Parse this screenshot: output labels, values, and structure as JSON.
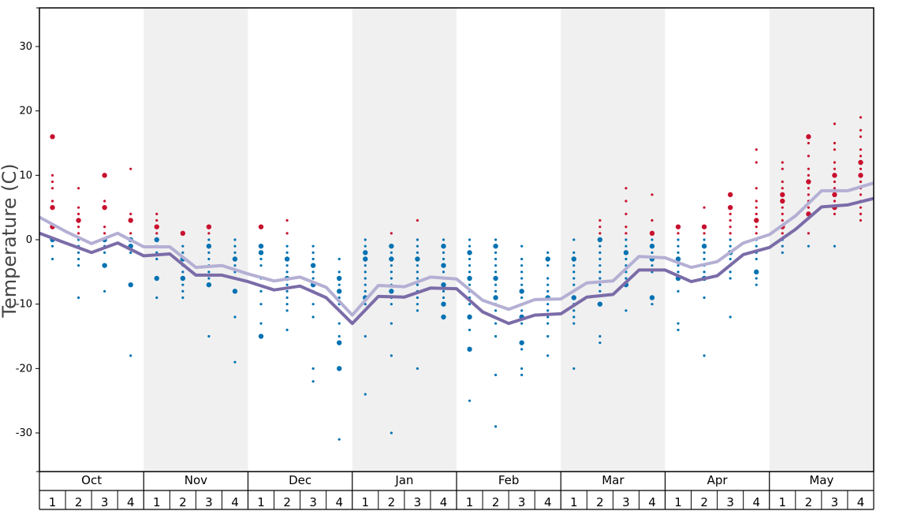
{
  "chart_data": {
    "type": "scatter",
    "ylabel": "Temperature (C)",
    "ylim": [
      -36,
      36
    ],
    "yticks": [
      30,
      20,
      10,
      0,
      -10,
      -20,
      -30
    ],
    "grid": false,
    "months": [
      "Oct",
      "Nov",
      "Dec",
      "Jan",
      "Feb",
      "Mar",
      "Apr",
      "May"
    ],
    "weeks": [
      "1",
      "2",
      "3",
      "4"
    ],
    "shaded_months": [
      "Nov",
      "Jan",
      "Mar",
      "May"
    ],
    "colors": {
      "warm_points": "#c8102e",
      "cold_points": "#0072b2",
      "shade": "#f0f0f0",
      "line_dark": "#7b6ca8",
      "line_light": "#b4b0d4",
      "axis": "#000000"
    },
    "series": [
      {
        "values": [
          1.0,
          -0.5,
          -2.0,
          -0.5,
          -2.5,
          -2.2,
          -5.5,
          -5.5,
          -6.5,
          -7.8,
          -7.2,
          -9.0,
          -13.0,
          -8.8,
          -8.9,
          -7.5,
          -7.6,
          -11.2,
          -13.0,
          -11.7,
          -11.5,
          -8.9,
          -8.5,
          -4.7,
          -4.7,
          -6.5,
          -5.6,
          -2.3,
          -1.2,
          1.6,
          5.1,
          5.4,
          6.4
        ]
      },
      {
        "values": [
          3.5,
          1.3,
          -0.6,
          1.0,
          -1.1,
          -1.1,
          -4.3,
          -4.0,
          -5.3,
          -6.4,
          -5.8,
          -7.4,
          -11.7,
          -7.1,
          -7.3,
          -5.8,
          -6.1,
          -9.4,
          -10.8,
          -9.3,
          -9.2,
          -6.7,
          -6.4,
          -2.6,
          -2.8,
          -4.3,
          -3.4,
          -0.5,
          0.8,
          3.7,
          7.6,
          7.6,
          8.8
        ]
      }
    ],
    "points": [
      {
        "month": "Oct",
        "week": 1,
        "temps": [
          16,
          10,
          9,
          8,
          6,
          5,
          2,
          0,
          -1,
          -3
        ],
        "big": [
          16,
          5,
          2,
          0
        ]
      },
      {
        "month": "Oct",
        "week": 2,
        "temps": [
          8,
          5,
          4,
          3,
          2,
          1,
          0,
          -1,
          -2,
          -3,
          -4,
          -9
        ],
        "big": [
          3
        ]
      },
      {
        "month": "Oct",
        "week": 3,
        "temps": [
          10,
          6,
          5,
          2,
          1,
          0,
          -1,
          -2,
          -4,
          -8
        ],
        "big": [
          10,
          5,
          0,
          -4
        ]
      },
      {
        "month": "Oct",
        "week": 4,
        "temps": [
          11,
          4,
          3,
          1,
          0,
          -1,
          -2,
          -7,
          -18
        ],
        "big": [
          3,
          0,
          -1,
          -7
        ]
      },
      {
        "month": "Nov",
        "week": 1,
        "temps": [
          4,
          3,
          2,
          1,
          0,
          -1,
          -2,
          -3,
          -6,
          -9
        ],
        "big": [
          2,
          0,
          -6
        ]
      },
      {
        "month": "Nov",
        "week": 2,
        "temps": [
          1,
          -1,
          -2,
          -3,
          -4,
          -5,
          -6,
          -7,
          -8,
          -9
        ],
        "big": [
          1,
          -3,
          -6
        ]
      },
      {
        "month": "Nov",
        "week": 3,
        "temps": [
          2,
          1,
          0,
          -1,
          -2,
          -3,
          -4,
          -5,
          -6,
          -7,
          -15
        ],
        "big": [
          2,
          -1,
          -7
        ]
      },
      {
        "month": "Nov",
        "week": 4,
        "temps": [
          0,
          -1,
          -2,
          -3,
          -4,
          -5,
          -6,
          -8,
          -12,
          -19
        ],
        "big": [
          -3,
          -8
        ]
      },
      {
        "month": "Dec",
        "week": 1,
        "temps": [
          2,
          -1,
          -2,
          -3,
          -4,
          -6,
          -8,
          -10,
          -13,
          -15
        ],
        "big": [
          2,
          -1,
          -2,
          -15
        ]
      },
      {
        "month": "Dec",
        "week": 2,
        "temps": [
          3,
          1,
          -1,
          -2,
          -3,
          -4,
          -5,
          -6,
          -7,
          -8,
          -9,
          -10,
          -11,
          -14
        ],
        "big": [
          -3,
          -6
        ]
      },
      {
        "month": "Dec",
        "week": 3,
        "temps": [
          -1,
          -2,
          -3,
          -4,
          -5,
          -6,
          -7,
          -8,
          -10,
          -12,
          -20,
          -22
        ],
        "big": [
          -4,
          -7
        ]
      },
      {
        "month": "Dec",
        "week": 4,
        "temps": [
          -3,
          -5,
          -6,
          -7,
          -8,
          -9,
          -10,
          -11,
          -13,
          -15,
          -16,
          -20,
          -31
        ],
        "big": [
          -6,
          -8,
          -20,
          -16
        ]
      },
      {
        "month": "Jan",
        "week": 1,
        "temps": [
          0,
          -1,
          -2,
          -3,
          -4,
          -5,
          -6,
          -7,
          -8,
          -9,
          -10,
          -15,
          -24
        ],
        "big": [
          -2,
          -3,
          -9
        ]
      },
      {
        "month": "Jan",
        "week": 2,
        "temps": [
          1,
          -1,
          -2,
          -3,
          -4,
          -5,
          -6,
          -7,
          -8,
          -9,
          -10,
          -13,
          -18,
          -30
        ],
        "big": [
          -1,
          -3,
          -8
        ]
      },
      {
        "month": "Jan",
        "week": 3,
        "temps": [
          3,
          0,
          -1,
          -2,
          -3,
          -4,
          -5,
          -6,
          -7,
          -8,
          -9,
          -10,
          -11,
          -20
        ],
        "big": [
          -3
        ]
      },
      {
        "month": "Jan",
        "week": 4,
        "temps": [
          0,
          -1,
          -2,
          -3,
          -4,
          -5,
          -6,
          -7,
          -8,
          -9,
          -10,
          -12
        ],
        "big": [
          -1,
          -4,
          -7,
          -10,
          -12
        ]
      },
      {
        "month": "Feb",
        "week": 1,
        "temps": [
          0,
          -1,
          -2,
          -3,
          -4,
          -5,
          -6,
          -7,
          -8,
          -9,
          -10,
          -12,
          -14,
          -17,
          -25
        ],
        "big": [
          -2,
          -6,
          -12,
          -17
        ]
      },
      {
        "month": "Feb",
        "week": 2,
        "temps": [
          0,
          -1,
          -2,
          -3,
          -4,
          -5,
          -6,
          -7,
          -8,
          -9,
          -10,
          -11,
          -13,
          -15,
          -21,
          -29
        ],
        "big": [
          -1,
          -6,
          -9,
          -14
        ]
      },
      {
        "month": "Feb",
        "week": 3,
        "temps": [
          -1,
          -3,
          -4,
          -5,
          -6,
          -7,
          -8,
          -9,
          -10,
          -11,
          -12,
          -13,
          -16,
          -17,
          -20,
          -21
        ],
        "big": [
          -8,
          -16,
          -12
        ]
      },
      {
        "month": "Feb",
        "week": 4,
        "temps": [
          -2,
          -3,
          -4,
          -6,
          -7,
          -8,
          -9,
          -10,
          -11,
          -12,
          -13,
          -15,
          -18
        ],
        "big": [
          -3,
          -9
        ]
      },
      {
        "month": "Mar",
        "week": 1,
        "temps": [
          0,
          -2,
          -3,
          -4,
          -5,
          -6,
          -7,
          -8,
          -9,
          -10,
          -11,
          -12,
          -13,
          -20
        ],
        "big": [
          -3,
          -9
        ]
      },
      {
        "month": "Mar",
        "week": 2,
        "temps": [
          3,
          2,
          1,
          0,
          -1,
          -2,
          -3,
          -4,
          -5,
          -6,
          -7,
          -8,
          -10,
          -15,
          -16
        ],
        "big": [
          0,
          -10
        ]
      },
      {
        "month": "Mar",
        "week": 3,
        "temps": [
          8,
          6,
          4,
          2,
          1,
          0,
          -1,
          -2,
          -3,
          -4,
          -5,
          -6,
          -7,
          -11
        ],
        "big": [
          -2,
          -7
        ]
      },
      {
        "month": "Mar",
        "week": 4,
        "temps": [
          7,
          3,
          1,
          0,
          -1,
          -2,
          -3,
          -4,
          -5,
          -9,
          -10
        ],
        "big": [
          1,
          -1,
          -3,
          -9
        ]
      },
      {
        "month": "Apr",
        "week": 1,
        "temps": [
          2,
          1,
          0,
          -1,
          -2,
          -3,
          -4,
          -5,
          -6,
          -8,
          -13,
          -14
        ],
        "big": [
          2,
          -3,
          -6
        ]
      },
      {
        "month": "Apr",
        "week": 2,
        "temps": [
          5,
          2,
          1,
          0,
          -1,
          -2,
          -3,
          -4,
          -5,
          -6,
          -9,
          -18
        ],
        "big": [
          2,
          -1,
          -6
        ]
      },
      {
        "month": "Apr",
        "week": 3,
        "temps": [
          7,
          5,
          4,
          3,
          2,
          1,
          0,
          -1,
          -2,
          -3,
          -4,
          -5,
          -6,
          -12
        ],
        "big": [
          7,
          5,
          -2
        ]
      },
      {
        "month": "Apr",
        "week": 4,
        "temps": [
          14,
          12,
          8,
          6,
          5,
          4,
          3,
          2,
          1,
          0,
          -1,
          -2,
          -3,
          -5,
          -6,
          -7
        ],
        "big": [
          3,
          -5
        ]
      },
      {
        "month": "May",
        "week": 1,
        "temps": [
          12,
          11,
          9,
          8,
          7,
          6,
          5,
          4,
          3,
          2,
          1,
          0,
          -1,
          -2
        ],
        "big": [
          7,
          6,
          2
        ]
      },
      {
        "month": "May",
        "week": 2,
        "temps": [
          16,
          15,
          13,
          11,
          10,
          9,
          8,
          7,
          6,
          5,
          4,
          1,
          -1
        ],
        "big": [
          16,
          9,
          4
        ]
      },
      {
        "month": "May",
        "week": 3,
        "temps": [
          18,
          15,
          14,
          12,
          11,
          10,
          9,
          8,
          7,
          6,
          5,
          4,
          -1
        ],
        "big": [
          10,
          7,
          5
        ]
      },
      {
        "month": "May",
        "week": 4,
        "temps": [
          19,
          17,
          16,
          14,
          13,
          12,
          11,
          10,
          9,
          8,
          7,
          6,
          5,
          4,
          3
        ],
        "big": [
          12,
          10
        ]
      }
    ]
  }
}
